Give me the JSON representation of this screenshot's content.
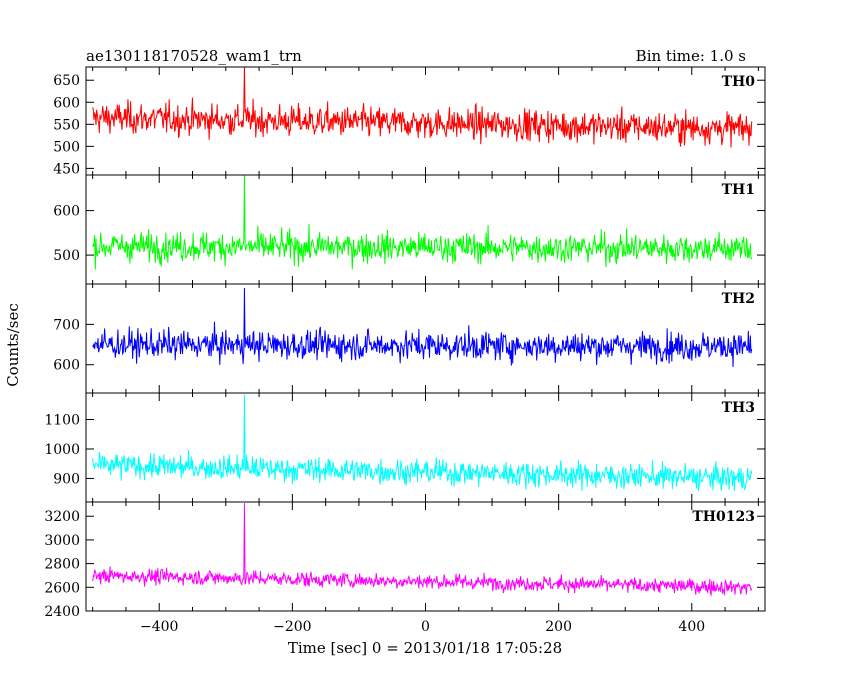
{
  "header": {
    "title": "ae130118170528_wam1_trn",
    "bin_time": "Bin time: 1.0 s"
  },
  "chart_data": {
    "type": "line",
    "xlabel": "Time [sec] 0 = 2013/01/18 17:05:28",
    "ylabel": "Counts/sec",
    "xlim": [
      -510,
      510
    ],
    "x_ticks": [
      -400,
      -200,
      0,
      200,
      400
    ],
    "x_range": [
      -500,
      490
    ],
    "panels": [
      {
        "name": "TH0",
        "color": "#ff0000",
        "ylim": [
          435,
          680
        ],
        "y_ticks": [
          450,
          500,
          550,
          600,
          650
        ],
        "mean_start": 565,
        "mean_end": 540,
        "noise": 28,
        "spike": {
          "x": -272,
          "value": 685
        },
        "y_ticks_labels": [
          "450",
          "500",
          "550",
          "600",
          "650"
        ]
      },
      {
        "name": "TH1",
        "color": "#00ff00",
        "ylim": [
          435,
          680
        ],
        "y_ticks": [
          500,
          600
        ],
        "mean_start": 520,
        "mean_end": 515,
        "noise": 26,
        "spike": {
          "x": -272,
          "value": 680
        },
        "y_ticks_labels": [
          "500",
          "600"
        ]
      },
      {
        "name": "TH2",
        "color": "#0000ff",
        "ylim": [
          530,
          800
        ],
        "y_ticks": [
          600,
          700
        ],
        "mean_start": 650,
        "mean_end": 645,
        "noise": 28,
        "spike": {
          "x": -272,
          "value": 790
        },
        "y_ticks_labels": [
          "600",
          "700"
        ]
      },
      {
        "name": "TH3",
        "color": "#00ffff",
        "ylim": [
          820,
          1190
        ],
        "y_ticks": [
          900,
          1000,
          1100
        ],
        "mean_start": 945,
        "mean_end": 900,
        "noise": 33,
        "spike": {
          "x": -272,
          "value": 1185
        },
        "y_ticks_labels": [
          "900",
          "1000",
          "1100"
        ]
      },
      {
        "name": "TH0123",
        "color": "#ff00ff",
        "ylim": [
          2400,
          3320
        ],
        "y_ticks": [
          2400,
          2600,
          2800,
          3000,
          3200
        ],
        "mean_start": 2700,
        "mean_end": 2600,
        "noise": 50,
        "spike": {
          "x": -272,
          "value": 3310
        },
        "y_ticks_labels": [
          "2400",
          "2600",
          "2800",
          "3000",
          "3200"
        ]
      }
    ]
  }
}
